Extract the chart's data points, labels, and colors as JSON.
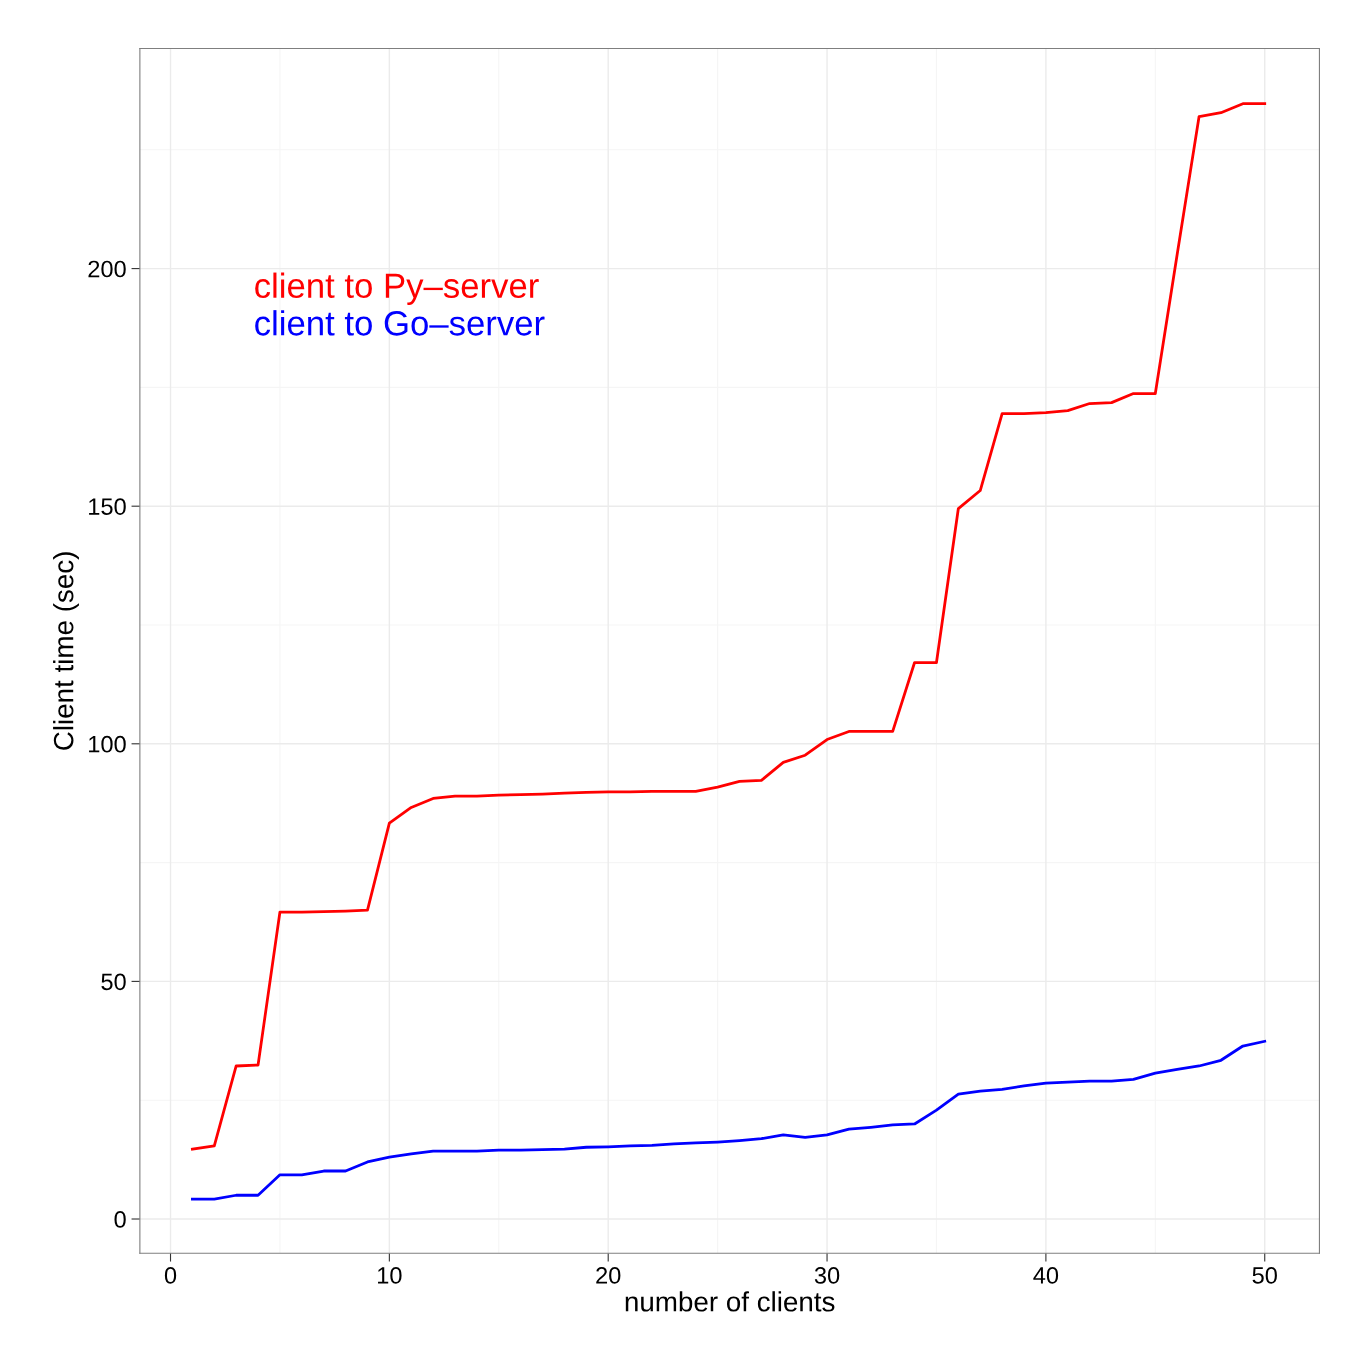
{
  "chart_data": {
    "type": "line",
    "xlabel": "number of clients",
    "ylabel": "Client time (sec)",
    "x": [
      1,
      2,
      3,
      4,
      5,
      6,
      7,
      8,
      9,
      10,
      11,
      12,
      13,
      14,
      15,
      16,
      17,
      18,
      19,
      20,
      21,
      22,
      23,
      24,
      25,
      26,
      27,
      28,
      29,
      30,
      31,
      32,
      33,
      34,
      35,
      36,
      37,
      38,
      39,
      40,
      41,
      42,
      43,
      44,
      45,
      46,
      47,
      48,
      49,
      50
    ],
    "series": [
      {
        "name": "client to Py–server",
        "color": "#ff0000",
        "values": [
          14.7,
          15.4,
          32.2,
          32.4,
          64.6,
          64.6,
          64.7,
          64.8,
          65.0,
          83.3,
          86.6,
          88.5,
          89.0,
          89.0,
          89.2,
          89.3,
          89.4,
          89.6,
          89.8,
          89.9,
          89.9,
          90.0,
          90.0,
          90.0,
          90.9,
          92.1,
          92.3,
          96.1,
          97.6,
          100.9,
          102.6,
          102.6,
          102.6,
          117.1,
          117.1,
          149.5,
          153.3,
          169.5,
          169.5,
          169.7,
          170.1,
          171.6,
          171.8,
          173.7,
          173.7,
          203,
          232.0,
          232.8,
          234.7,
          234.7
        ]
      },
      {
        "name": "client to Go–server",
        "color": "#0000ff",
        "values": [
          4.2,
          4.2,
          5.0,
          5.0,
          9.3,
          9.3,
          10.1,
          10.1,
          12.0,
          13.0,
          13.7,
          14.3,
          14.3,
          14.3,
          14.5,
          14.5,
          14.6,
          14.7,
          15.1,
          15.2,
          15.4,
          15.5,
          15.8,
          16.0,
          16.2,
          16.5,
          16.9,
          17.7,
          17.2,
          17.7,
          18.9,
          19.3,
          19.8,
          20.0,
          22.9,
          26.3,
          26.9,
          27.3,
          28.0,
          28.6,
          28.8,
          29.0,
          29.0,
          29.4,
          30.7,
          31.5,
          32.2,
          33.4,
          36.4,
          37.4
        ]
      }
    ],
    "xlim": [
      -1.4,
      52.5
    ],
    "ylim": [
      -7.2,
      246.3
    ],
    "xticks": [
      0,
      10,
      20,
      30,
      40,
      50
    ],
    "yticks": [
      0,
      50,
      100,
      150,
      200
    ],
    "grid": true,
    "legend": "top left",
    "marker": "none",
    "line_style": "solid"
  }
}
